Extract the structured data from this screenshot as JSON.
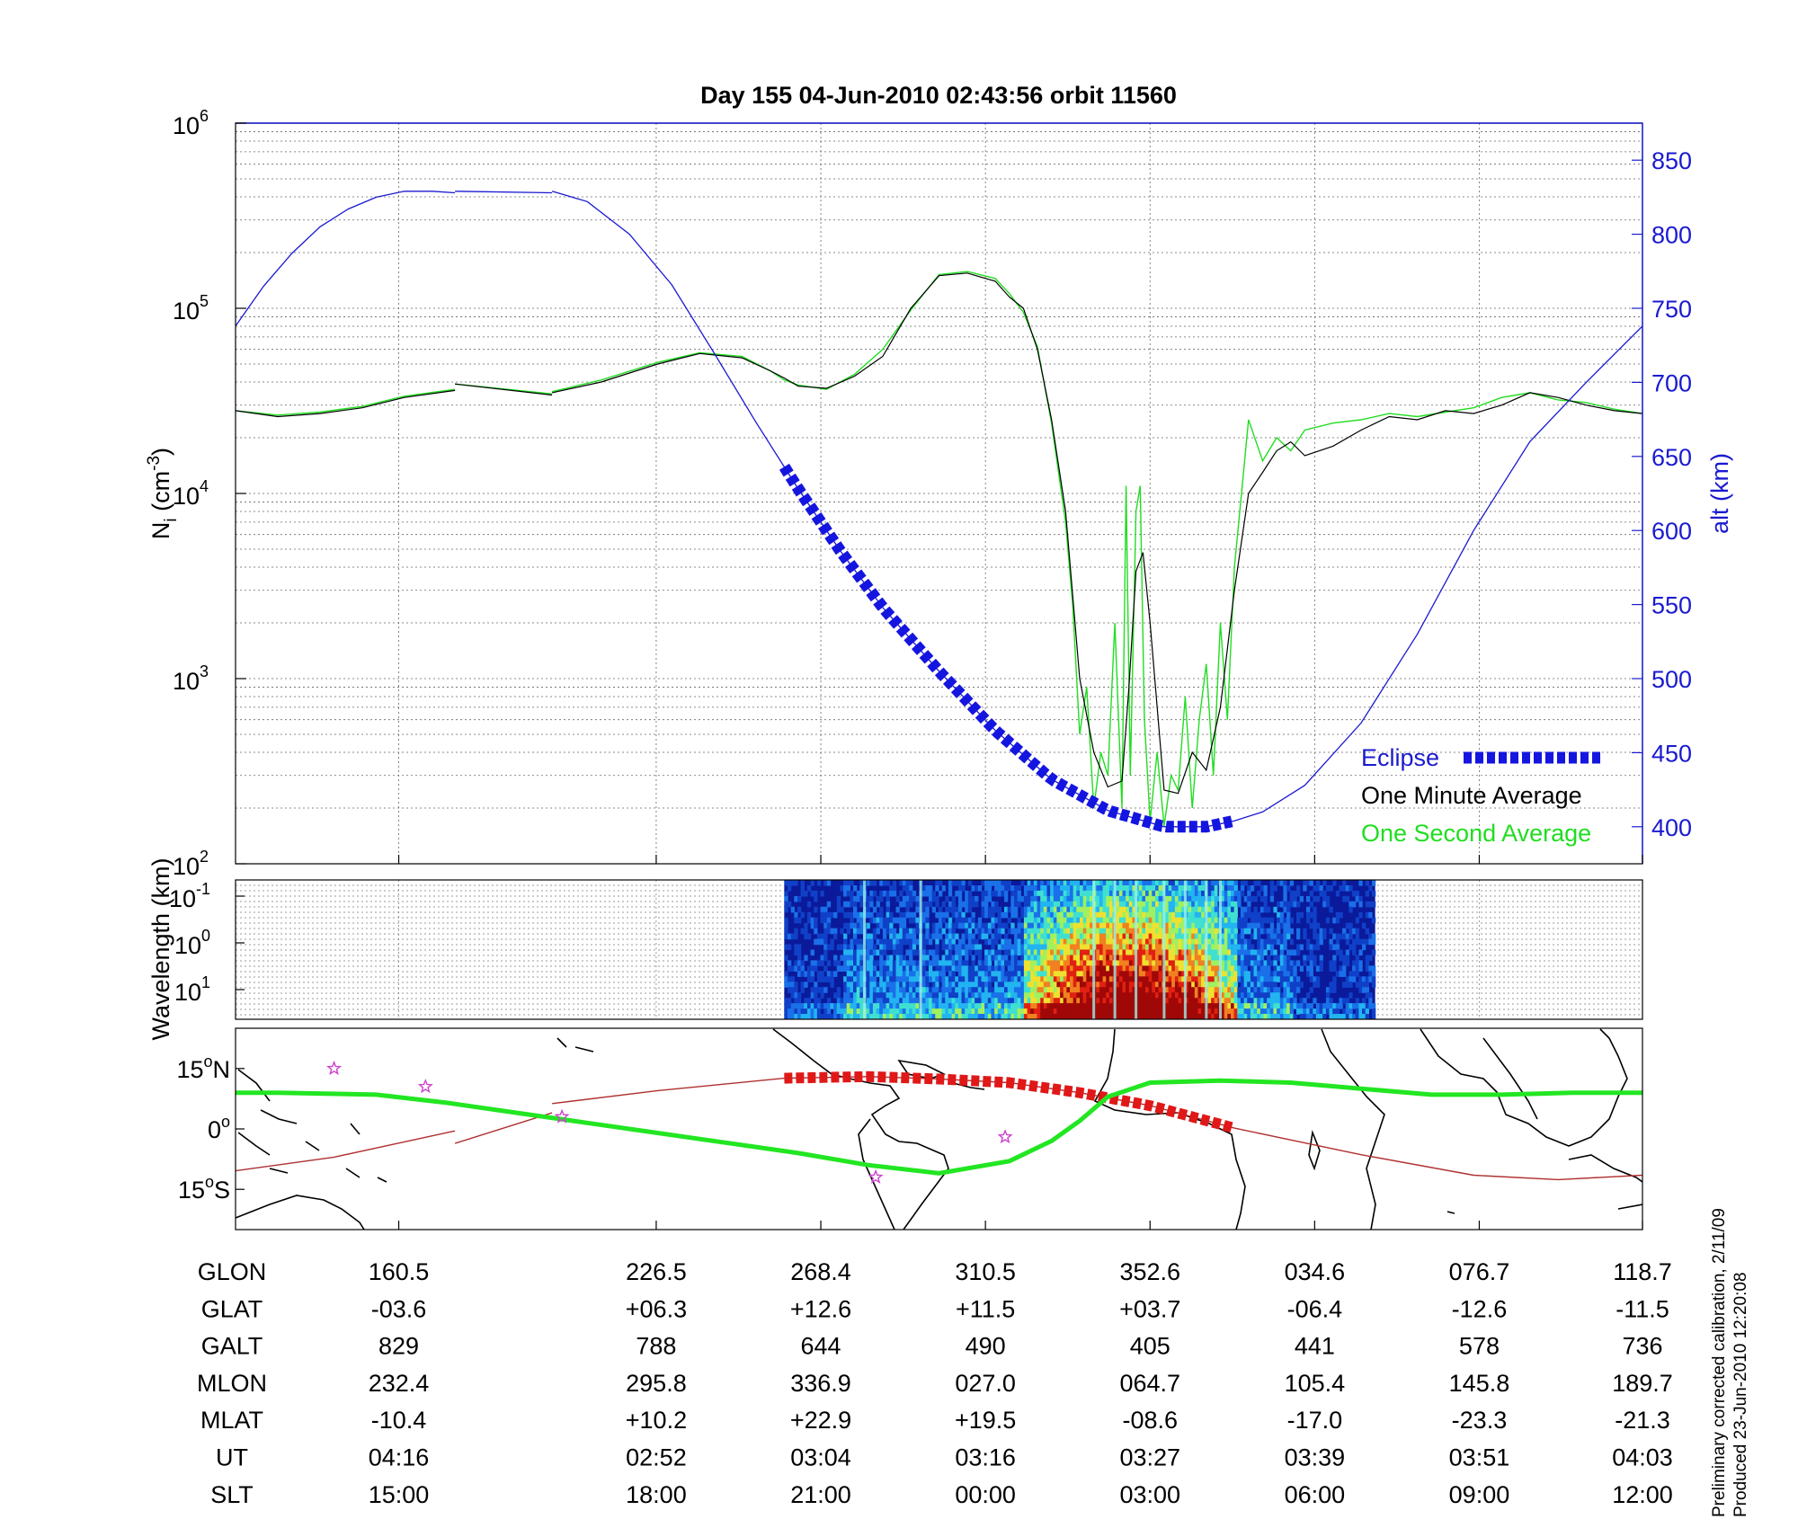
{
  "title": "Day 155  04-Jun-2010 02:43:56   orbit 11560",
  "colors": {
    "altitude": "#1a1ad0",
    "eclipse": "#1515e0",
    "one_minute": "#000000",
    "one_second": "#22dd22",
    "orbit_track": "#b03030",
    "orbit_eclipse": "#e01818",
    "magnetic_equator": "#22e622",
    "star": "#cc44cc"
  },
  "chart_data": [
    {
      "type": "line",
      "panel": "ion-density",
      "ylabel_main": "N",
      "ylabel_sub": "i",
      "ylabel_unit": "(cm",
      "ylabel_exp": "-3",
      "y_scale": "log",
      "ylim": [
        100,
        1000000
      ],
      "y_ticks": [
        {
          "value": 100,
          "base": "10",
          "exp": "2"
        },
        {
          "value": 1000,
          "base": "10",
          "exp": "3"
        },
        {
          "value": 10000,
          "base": "10",
          "exp": "4"
        },
        {
          "value": 100000,
          "base": "10",
          "exp": "5"
        },
        {
          "value": 1000000,
          "base": "10",
          "exp": "6"
        }
      ],
      "y2label": "alt (km)",
      "y2lim": [
        375,
        875
      ],
      "y2_ticks": [
        "400",
        "450",
        "500",
        "550",
        "600",
        "650",
        "700",
        "750",
        "800",
        "850"
      ],
      "xlim": [
        0,
        1
      ],
      "grid": true,
      "legend_position": "bottom-right",
      "legend": {
        "eclipse": "Eclipse",
        "minute": "One Minute Average",
        "second": "One Second Average"
      },
      "series": [
        {
          "name": "One Minute Average",
          "x": [
            0,
            0.03,
            0.06,
            0.09,
            0.12,
            0.156,
            0.156,
            0.225,
            0.225,
            0.26,
            0.3,
            0.33,
            0.36,
            0.38,
            0.39,
            0.4,
            0.42,
            0.44,
            0.46,
            0.48,
            0.5,
            0.52,
            0.54,
            0.55,
            0.56,
            0.57,
            0.58,
            0.59,
            0.6,
            0.61,
            0.62,
            0.63,
            0.635,
            0.64,
            0.645,
            0.65,
            0.66,
            0.67,
            0.68,
            0.69,
            0.7,
            0.71,
            0.72,
            0.73,
            0.74,
            0.75,
            0.76,
            0.78,
            0.8,
            0.82,
            0.84,
            0.86,
            0.88,
            0.9,
            0.92,
            0.94,
            0.96,
            0.98,
            1.0
          ],
          "y": [
            28000,
            26000,
            27000,
            29000,
            33000,
            36000,
            39000,
            34000,
            35000,
            40000,
            50000,
            57000,
            54000,
            46000,
            42000,
            38000,
            37000,
            43000,
            55000,
            100000,
            150000,
            155000,
            140000,
            115000,
            100000,
            60000,
            25000,
            8000,
            1000,
            400,
            260,
            280,
            900,
            3800,
            4800,
            2000,
            250,
            240,
            400,
            320,
            700,
            3000,
            10000,
            13000,
            17000,
            19000,
            16000,
            18000,
            22000,
            26000,
            25000,
            28000,
            27000,
            30000,
            35000,
            33000,
            30000,
            28000,
            27000
          ]
        },
        {
          "name": "One Second Average",
          "x": [
            0,
            0.03,
            0.06,
            0.09,
            0.12,
            0.156,
            0.156,
            0.225,
            0.225,
            0.26,
            0.3,
            0.33,
            0.36,
            0.38,
            0.39,
            0.4,
            0.42,
            0.44,
            0.46,
            0.48,
            0.5,
            0.52,
            0.54,
            0.55,
            0.56,
            0.57,
            0.58,
            0.59,
            0.595,
            0.6,
            0.605,
            0.61,
            0.615,
            0.62,
            0.625,
            0.63,
            0.633,
            0.636,
            0.64,
            0.643,
            0.646,
            0.65,
            0.655,
            0.66,
            0.665,
            0.67,
            0.675,
            0.68,
            0.685,
            0.69,
            0.695,
            0.7,
            0.705,
            0.71,
            0.715,
            0.72,
            0.73,
            0.74,
            0.75,
            0.76,
            0.78,
            0.8,
            0.82,
            0.84,
            0.86,
            0.88,
            0.9,
            0.92,
            0.94,
            0.96,
            0.98,
            1.0
          ],
          "y": [
            28000,
            26500,
            27500,
            29500,
            33500,
            36500,
            39000,
            34500,
            35500,
            41000,
            51000,
            57500,
            55000,
            46000,
            41000,
            38500,
            36500,
            44000,
            60000,
            98000,
            152000,
            158000,
            145000,
            120000,
            95000,
            62000,
            24000,
            7000,
            2500,
            500,
            900,
            200,
            400,
            300,
            2000,
            200,
            11000,
            300,
            8000,
            11000,
            600,
            170,
            400,
            160,
            300,
            250,
            800,
            200,
            600,
            1200,
            300,
            2000,
            600,
            4000,
            10000,
            25000,
            15000,
            20000,
            17000,
            22000,
            24000,
            25000,
            27000,
            26000,
            27500,
            29000,
            33000,
            35000,
            32000,
            31000,
            28500,
            27000
          ]
        },
        {
          "name": "alt",
          "axis": "y2",
          "x": [
            0,
            0.02,
            0.04,
            0.06,
            0.08,
            0.1,
            0.12,
            0.14,
            0.156,
            0.156,
            0.225,
            0.225,
            0.25,
            0.28,
            0.31,
            0.34,
            0.37,
            0.4,
            0.43,
            0.46,
            0.5,
            0.54,
            0.58,
            0.62,
            0.66,
            0.69,
            0.71,
            0.73,
            0.76,
            0.8,
            0.84,
            0.88,
            0.92,
            0.96,
            1.0
          ],
          "y": [
            738,
            765,
            787,
            805,
            817,
            825,
            829,
            829,
            828,
            829,
            828,
            829,
            822,
            800,
            766,
            720,
            673,
            628,
            586,
            548,
            505,
            465,
            432,
            411,
            400,
            400,
            404,
            410,
            428,
            470,
            530,
            600,
            660,
            700,
            738
          ]
        },
        {
          "name": "Eclipse",
          "axis": "y2",
          "x_range": [
            0.39,
            0.71
          ]
        }
      ]
    },
    {
      "type": "heatmap",
      "panel": "spectrogram",
      "ylabel": "Wavelength (km)",
      "y_scale": "log",
      "y_ticks": [
        {
          "base": "10",
          "exp": "-1"
        },
        {
          "base": "10",
          "exp": "0"
        },
        {
          "base": "10",
          "exp": "1"
        }
      ],
      "x_range": [
        0.39,
        0.81
      ],
      "active_ranges": [
        [
          0.56,
          0.71
        ]
      ],
      "spike_positions": [
        0.447,
        0.487,
        0.61,
        0.625,
        0.64,
        0.66,
        0.675,
        0.69,
        0.7
      ]
    },
    {
      "type": "line",
      "panel": "map",
      "y_ticks": [
        {
          "deg": "15",
          "hem": "N"
        },
        {
          "deg": "0",
          "hem": ""
        },
        {
          "deg": "15",
          "hem": "S"
        }
      ],
      "ylim": [
        -25,
        25
      ],
      "series": [
        {
          "name": "orbit-track",
          "x": [
            0,
            0.07,
            0.156,
            0.156,
            0.225,
            0.225,
            0.3,
            0.39,
            0.45,
            0.5,
            0.55,
            0.6,
            0.65,
            0.71,
            0.8,
            0.88,
            0.94,
            1.0
          ],
          "y": [
            -10.4,
            -7,
            -0.5,
            -3.6,
            4,
            6.3,
            9.5,
            12.6,
            13,
            12.4,
            11.5,
            9,
            5.8,
            0.2,
            -6.4,
            -11.5,
            -12.6,
            -11.5
          ]
        },
        {
          "name": "magnetic-equator",
          "x": [
            0,
            0.03,
            0.1,
            0.15,
            0.2,
            0.25,
            0.3,
            0.35,
            0.4,
            0.45,
            0.5,
            0.55,
            0.58,
            0.6,
            0.62,
            0.65,
            0.7,
            0.75,
            0.8,
            0.85,
            0.9,
            0.95,
            1.0
          ],
          "y": [
            9,
            9,
            8.5,
            6.5,
            4,
            1.5,
            -1,
            -3.5,
            -6,
            -9,
            -11,
            -8,
            -3,
            2,
            8,
            11.5,
            12,
            11.5,
            10,
            8.5,
            8.5,
            9,
            9
          ]
        }
      ],
      "eclipse_range": [
        0.39,
        0.71
      ],
      "stars": [
        {
          "x": 0.07,
          "y": 15
        },
        {
          "x": 0.135,
          "y": 10.5
        },
        {
          "x": 0.232,
          "y": 3
        },
        {
          "x": 0.455,
          "y": -12
        },
        {
          "x": 0.547,
          "y": -2
        }
      ]
    }
  ],
  "table": {
    "columns_x": [
      0.116,
      0.299,
      0.416,
      0.533,
      0.65,
      0.767,
      0.884,
      1.0
    ],
    "rows": [
      {
        "label": "GLON",
        "values": [
          "160.5",
          "226.5",
          "268.4",
          "310.5",
          "352.6",
          "034.6",
          "076.7",
          "118.7"
        ]
      },
      {
        "label": "GLAT",
        "values": [
          "-03.6",
          "+06.3",
          "+12.6",
          "+11.5",
          "+03.7",
          "-06.4",
          "-12.6",
          "-11.5"
        ]
      },
      {
        "label": "GALT",
        "values": [
          "829",
          "788",
          "644",
          "490",
          "405",
          "441",
          "578",
          "736"
        ]
      },
      {
        "label": "MLON",
        "values": [
          "232.4",
          "295.8",
          "336.9",
          "027.0",
          "064.7",
          "105.4",
          "145.8",
          "189.7"
        ]
      },
      {
        "label": "MLAT",
        "values": [
          "-10.4",
          "+10.2",
          "+22.9",
          "+19.5",
          "-08.6",
          "-17.0",
          "-23.3",
          "-21.3"
        ]
      },
      {
        "label": "UT",
        "values": [
          "04:16",
          "02:52",
          "03:04",
          "03:16",
          "03:27",
          "03:39",
          "03:51",
          "04:03"
        ]
      },
      {
        "label": "SLT",
        "values": [
          "15:00",
          "18:00",
          "21:00",
          "00:00",
          "03:00",
          "06:00",
          "09:00",
          "12:00"
        ]
      }
    ]
  },
  "notes": [
    "Preliminary corrected calibration, 2/11/09",
    "Produced 23-Jun-2010 12:20:08"
  ]
}
